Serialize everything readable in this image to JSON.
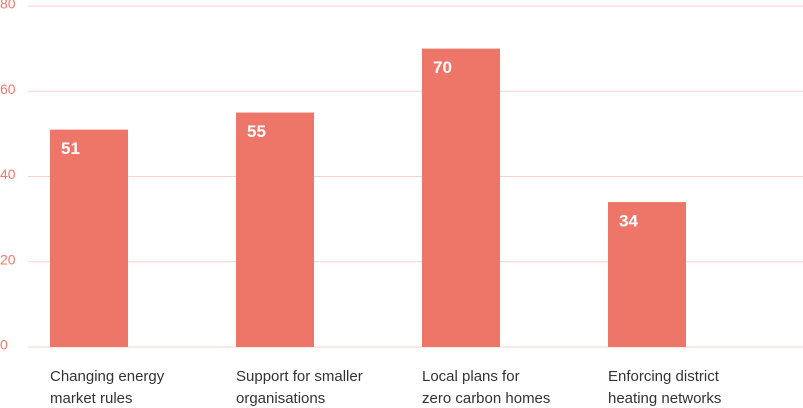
{
  "chart_data": {
    "type": "bar",
    "categories": [
      [
        "Changing energy",
        "market rules"
      ],
      [
        "Support for smaller",
        "organisations"
      ],
      [
        "Local plans for",
        "zero carbon homes"
      ],
      [
        "Enforcing district",
        "heating networks"
      ]
    ],
    "values": [
      51,
      55,
      70,
      34
    ],
    "color": "#ee7669",
    "ylim": [
      0,
      80
    ],
    "yticks": [
      0,
      20,
      40,
      60,
      80
    ],
    "grid": true
  }
}
